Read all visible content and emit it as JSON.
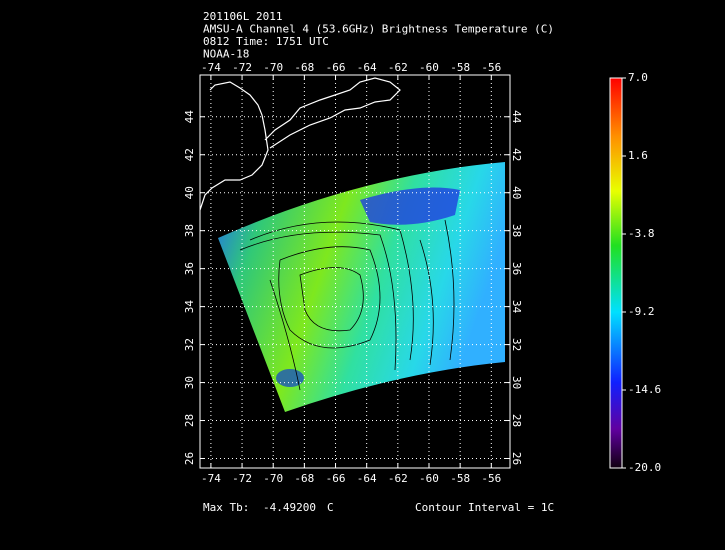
{
  "header": [
    "201106L 2011",
    "AMSU-A Channel 4 (53.6GHz) Brightness Temperature (C)",
    "0812 Time: 1751 UTC",
    "NOAA-18"
  ],
  "map": {
    "xlim": [
      -74.7,
      -54.8
    ],
    "ylim": [
      25.5,
      46.2
    ],
    "xticks": [
      -74,
      -72,
      -70,
      -68,
      -66,
      -64,
      -62,
      -60,
      -58,
      -56
    ],
    "yticks": [
      26,
      28,
      30,
      32,
      34,
      36,
      38,
      40,
      42,
      44
    ],
    "grid": true
  },
  "colorbar": {
    "lim": [
      -20,
      7
    ],
    "ticks": [
      {
        "value": 7,
        "label": "7.0"
      },
      1.6,
      -3.8,
      -9.2,
      -14.6,
      {
        "value": -20,
        "label": "-20.0"
      }
    ]
  },
  "footer": {
    "max_label": "Max Tb:",
    "max_value": "-4.49200",
    "unit": "C",
    "contour": "Contour Interval = 1C"
  }
}
